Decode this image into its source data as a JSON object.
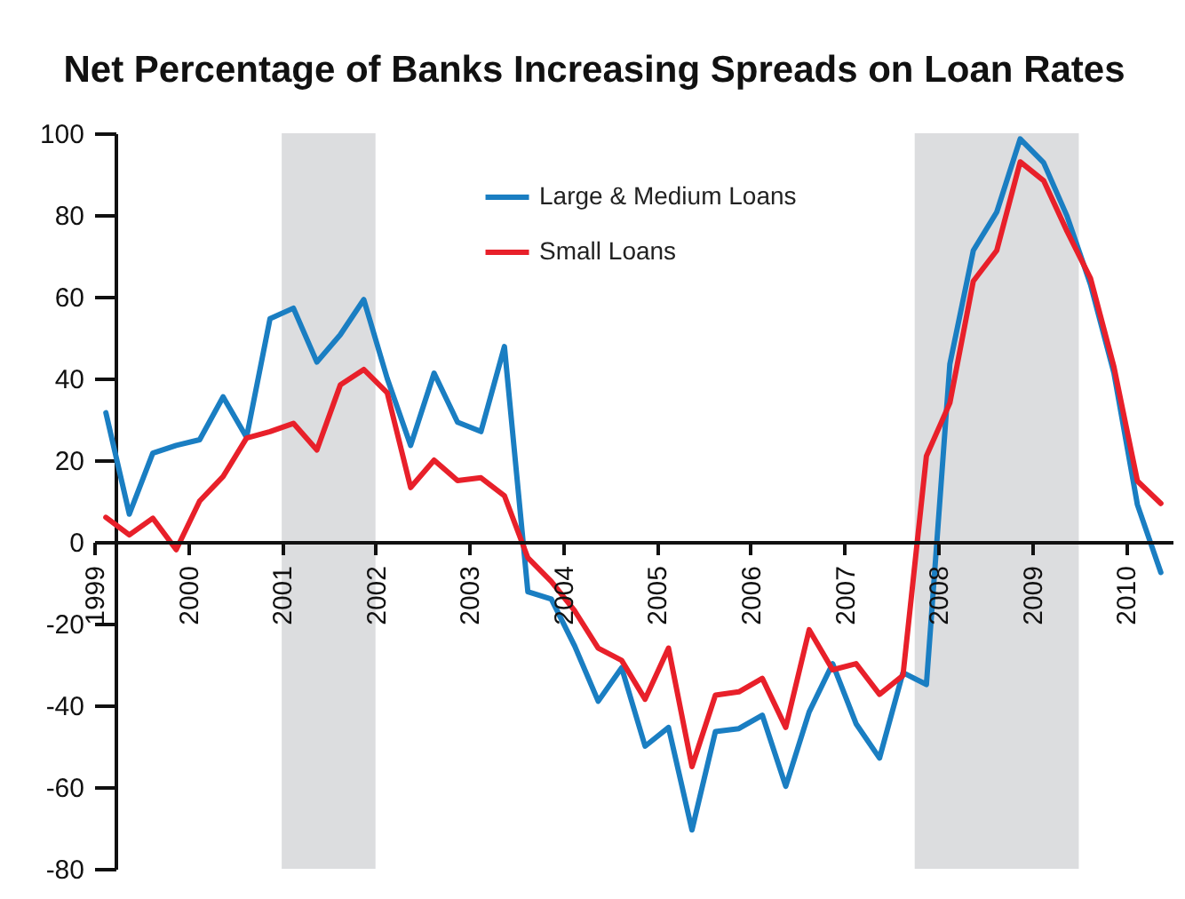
{
  "chart_data": {
    "type": "line",
    "title": "Net Percentage of Banks Increasing Spreads on Loan Rates",
    "x": [
      1999.125,
      1999.375,
      1999.625,
      1999.875,
      2000.125,
      2000.375,
      2000.625,
      2000.875,
      2001.125,
      2001.375,
      2001.625,
      2001.875,
      2002.125,
      2002.375,
      2002.625,
      2002.875,
      2003.125,
      2003.375,
      2003.625,
      2003.875,
      2004.125,
      2004.375,
      2004.625,
      2004.875,
      2005.125,
      2005.375,
      2005.625,
      2005.875,
      2006.125,
      2006.375,
      2006.625,
      2006.875,
      2007.125,
      2007.375,
      2007.625,
      2007.875,
      2008.125,
      2008.375,
      2008.625,
      2008.875,
      2009.125,
      2009.375,
      2009.625,
      2009.875,
      2010.125,
      2010.375
    ],
    "series": [
      {
        "name": "Large & Medium Loans",
        "color": "#1a7ec2",
        "values": [
          31.6,
          6.8,
          21.7,
          23.6,
          25,
          35.5,
          25.6,
          54.6,
          57.2,
          44,
          50.7,
          59.3,
          40,
          23.6,
          41.3,
          29.3,
          27,
          47.8,
          -12.2,
          -14,
          -25.5,
          -39,
          -30.8,
          -50,
          -45.4,
          -70.5,
          -46.4,
          -45.7,
          -42.4,
          -59.8,
          -41.6,
          -29.8,
          -44.5,
          -52.9,
          -32,
          -34.9,
          43.5,
          71.3,
          80.7,
          98.6,
          92.8,
          79.7,
          63,
          41.3,
          9.1,
          -7.5
        ]
      },
      {
        "name": "Small Loans",
        "color": "#e8202a",
        "values": [
          6,
          1.7,
          5.8,
          -1.9,
          10,
          16,
          25.4,
          27,
          29,
          22.5,
          38.4,
          42.2,
          36.5,
          13.3,
          20,
          15,
          15.7,
          11.3,
          -3.9,
          -9.7,
          -16.9,
          -26,
          -29,
          -38.5,
          -26,
          -55,
          -37.5,
          -36.7,
          -33.4,
          -45.4,
          -21.5,
          -31.3,
          -29.8,
          -37.3,
          -32.7,
          21,
          34,
          63.8,
          71.3,
          93,
          88.4,
          76,
          64.5,
          42.8,
          14.9,
          9.4
        ]
      }
    ],
    "xlim": [
      1999,
      2010.5
    ],
    "xticks": [
      1999,
      2000,
      2001,
      2002,
      2003,
      2004,
      2005,
      2006,
      2007,
      2008,
      2009,
      2010
    ],
    "ylim": [
      -80,
      100
    ],
    "yticks": [
      -80,
      -60,
      -40,
      -20,
      0,
      20,
      40,
      60,
      80,
      100
    ],
    "bands": [
      {
        "axis": "x",
        "from": 2001,
        "to": 2002,
        "color": "#dcdddf"
      },
      {
        "axis": "x",
        "from": 2007.75,
        "to": 2009.5,
        "color": "#dcdddf"
      }
    ],
    "grid": false,
    "legend": "top",
    "marker": "none",
    "line_style": "solid"
  }
}
